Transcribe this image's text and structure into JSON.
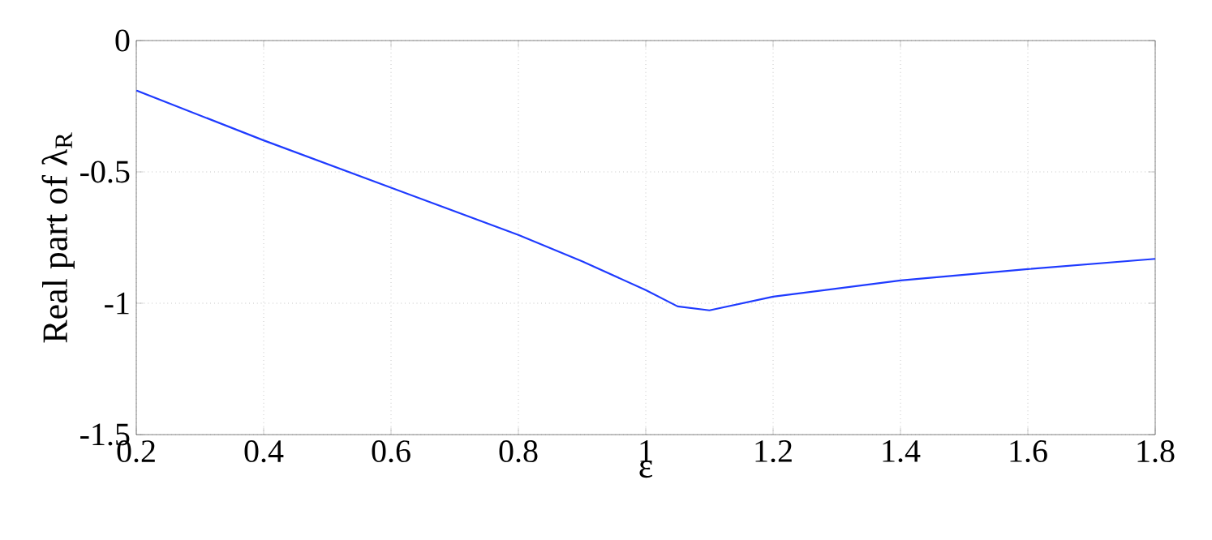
{
  "chart_data": {
    "type": "line",
    "xlabel": "ε",
    "ylabel": "Real part of λ$_{R}$",
    "xlim": [
      0.2,
      1.8
    ],
    "ylim": [
      -1.5,
      0
    ],
    "xticks": [
      0.2,
      0.4,
      0.6,
      0.8,
      1,
      1.2,
      1.4,
      1.6,
      1.8
    ],
    "yticks": [
      -1.5,
      -1,
      -0.5,
      0
    ],
    "grid": true,
    "marker": "none",
    "line_style": "solid",
    "series": [
      {
        "color": "#1f3bff",
        "x": [
          0.2,
          0.4,
          0.6,
          0.8,
          0.9,
          1.0,
          1.05,
          1.1,
          1.2,
          1.4,
          1.6,
          1.8
        ],
        "values": [
          -0.19,
          -0.38,
          -0.56,
          -0.74,
          -0.84,
          -0.95,
          -1.012,
          -1.027,
          -0.975,
          -0.913,
          -0.87,
          -0.831
        ]
      }
    ]
  }
}
